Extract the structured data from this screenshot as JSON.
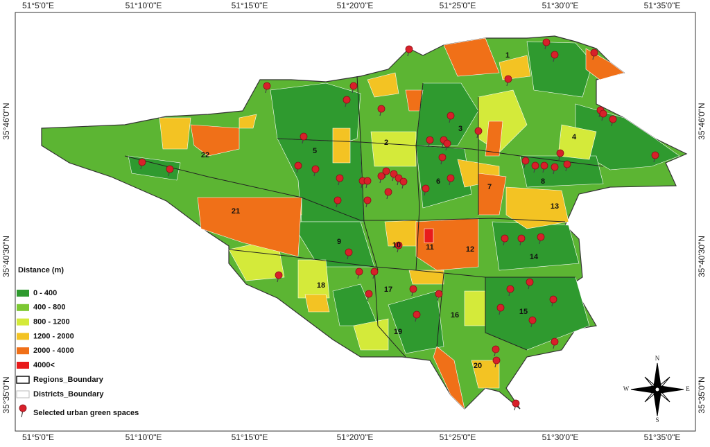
{
  "coordinates": {
    "top": [
      "51°5'0\"E",
      "51°10'0\"E",
      "51°15'0\"E",
      "51°20'0\"E",
      "51°25'0\"E",
      "51°30'0\"E",
      "51°35'0\"E"
    ],
    "bottom": [
      "51°5'0\"E",
      "51°10'0\"E",
      "51°15'0\"E",
      "51°20'0\"E",
      "51°25'0\"E",
      "51°30'0\"E",
      "51°35'0\"E"
    ],
    "left": [
      "35°46'0\"N",
      "35°40'30\"N",
      "35°35'0\"N"
    ],
    "right": [
      "35°46'0\"N",
      "35°40'30\"N",
      "35°35'0\"N"
    ]
  },
  "legend": {
    "title": "Distance (m)",
    "classes": [
      {
        "label": "0 - 400",
        "color": "#2f9a2f"
      },
      {
        "label": "400 - 800",
        "color": "#7cc832"
      },
      {
        "label": "800 - 1200",
        "color": "#d4ea3a"
      },
      {
        "label": "1200 - 2000",
        "color": "#f3c323"
      },
      {
        "label": "2000 - 4000",
        "color": "#f07018"
      },
      {
        "label": "4000<",
        "color": "#e81b1b"
      }
    ],
    "boundaries": [
      "Regions_Boundary",
      "Districts_Boundary"
    ],
    "points": "Selected urban green spaces"
  },
  "regions": [
    "1",
    "2",
    "3",
    "4",
    "5",
    "6",
    "7",
    "8",
    "9",
    "10",
    "11",
    "12",
    "13",
    "14",
    "15",
    "16",
    "17",
    "18",
    "19",
    "20",
    "21",
    "22"
  ],
  "compass": {
    "north": "N",
    "south": "S",
    "east": "E",
    "west": "W"
  }
}
